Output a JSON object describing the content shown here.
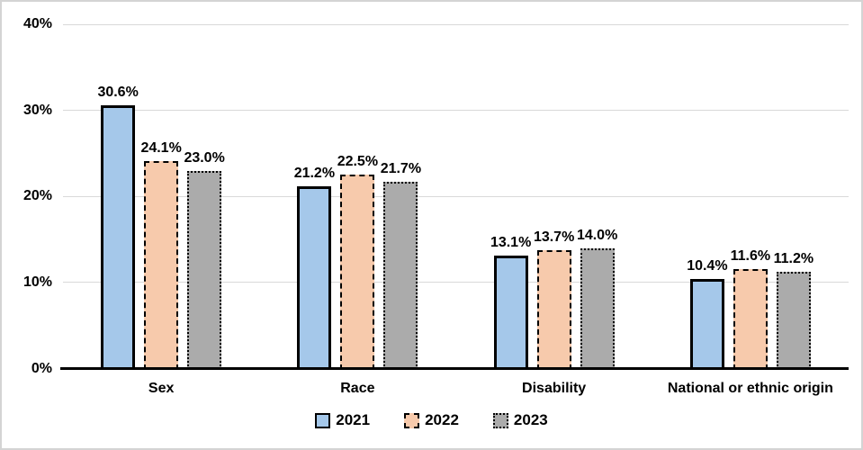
{
  "chart": {
    "background": "#FFFFFF",
    "border_color": "#D4D4D4",
    "gridline_color": "#D9D9D9",
    "axis_color": "#000000",
    "text_color": "#000000"
  },
  "chart_data": {
    "type": "bar",
    "title": "",
    "xlabel": "",
    "ylabel": "",
    "categories": [
      "Sex",
      "Race",
      "Disability",
      "National or ethnic origin"
    ],
    "series": [
      {
        "name": "2021",
        "values": [
          30.6,
          21.2,
          13.1,
          10.4
        ],
        "labels": [
          "30.6%",
          "21.2%",
          "13.1%",
          "10.4%"
        ],
        "fill": "#A5C8EA",
        "border_color": "#000000",
        "border_style": "solid"
      },
      {
        "name": "2022",
        "values": [
          24.1,
          22.5,
          13.7,
          11.6
        ],
        "labels": [
          "24.1%",
          "22.5%",
          "13.7%",
          "11.6%"
        ],
        "fill": "#F7CAAC",
        "border_color": "#000000",
        "border_style": "dashed"
      },
      {
        "name": "2023",
        "values": [
          23.0,
          21.7,
          14.0,
          11.2
        ],
        "labels": [
          "23.0%",
          "21.7%",
          "14.0%",
          "11.2%"
        ],
        "fill": "#ABABAB",
        "border_color": "#000000",
        "border_style": "dotted"
      }
    ],
    "yaxis": {
      "min": 0,
      "max": 40,
      "ticks": [
        0,
        10,
        20,
        30,
        40
      ],
      "tick_labels": [
        "0%",
        "10%",
        "20%",
        "30%",
        "40%"
      ]
    },
    "grid": true,
    "legend": {
      "position": "bottom",
      "entries": [
        "2021",
        "2022",
        "2023"
      ]
    }
  }
}
